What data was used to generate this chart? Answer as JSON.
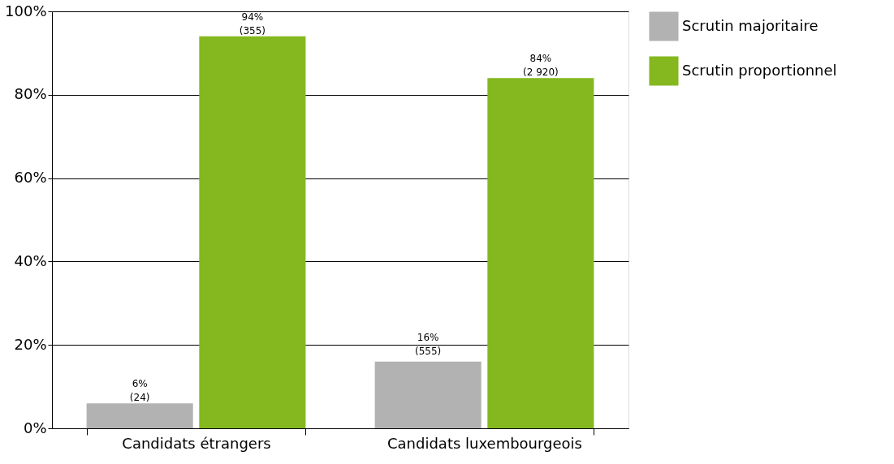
{
  "chart_data": {
    "type": "bar",
    "categories": [
      "Candidats étrangers",
      "Candidats luxembourgeois"
    ],
    "series": [
      {
        "name": "Scrutin majoritaire",
        "color": "#b2b2b2",
        "values": [
          6,
          16
        ],
        "value_labels": [
          "6%\n(24)",
          "16%\n(555)"
        ]
      },
      {
        "name": "Scrutin proportionnel",
        "color": "#84b81e",
        "values": [
          94,
          84
        ],
        "value_labels": [
          "94%\n(355)",
          "84%\n(2 920)"
        ]
      }
    ],
    "ylim": [
      0,
      100
    ],
    "yticks": [
      {
        "value": 0,
        "label": "0%"
      },
      {
        "value": 20,
        "label": "20%"
      },
      {
        "value": 40,
        "label": "40%"
      },
      {
        "value": 60,
        "label": "60%"
      },
      {
        "value": 80,
        "label": "80%"
      },
      {
        "value": 100,
        "label": "100%"
      }
    ],
    "grid": "y",
    "legend": "right"
  }
}
